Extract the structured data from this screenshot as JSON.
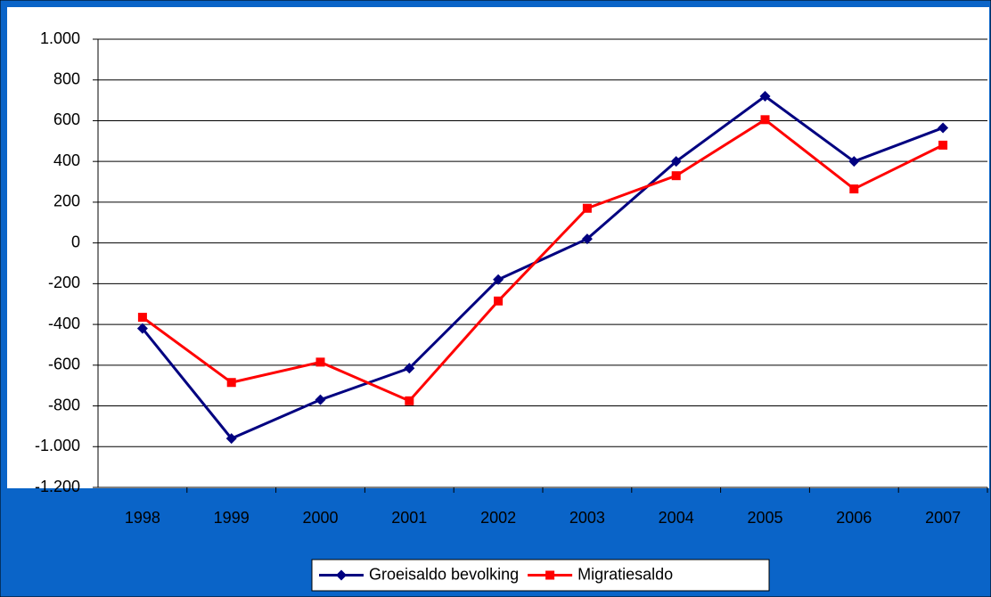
{
  "chart_data": {
    "type": "line",
    "categories": [
      "1998",
      "1999",
      "2000",
      "2001",
      "2002",
      "2003",
      "2004",
      "2005",
      "2006",
      "2007"
    ],
    "series": [
      {
        "name": "Groeisaldo bevolking",
        "color": "#000080",
        "marker": "diamond",
        "values": [
          -420,
          -960,
          -770,
          -615,
          -180,
          20,
          400,
          720,
          400,
          565
        ]
      },
      {
        "name": "Migratiesaldo",
        "color": "#ff0000",
        "marker": "square",
        "values": [
          -365,
          -685,
          -585,
          -775,
          -285,
          170,
          330,
          605,
          265,
          480
        ]
      }
    ],
    "ylim": [
      -1200,
      1000
    ],
    "yticks": [
      {
        "value": -1200,
        "label": "-1.200"
      },
      {
        "value": -1000,
        "label": "-1.000"
      },
      -800,
      -600,
      -400,
      -200,
      0,
      200,
      400,
      600,
      800,
      {
        "value": 1000,
        "label": "1.000"
      }
    ],
    "grid": true,
    "legend": "bottom"
  }
}
